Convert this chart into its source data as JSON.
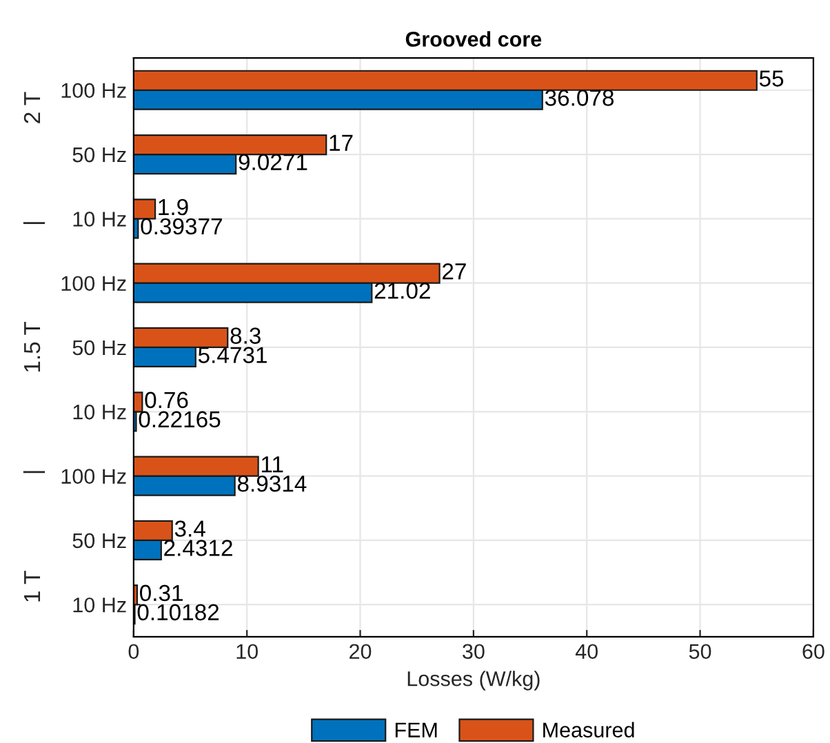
{
  "chart_data": {
    "type": "bar",
    "orientation": "horizontal",
    "title": "Grooved core",
    "xlabel": "Losses (W/kg)",
    "ylabel": "1 T               |               1.5 T               |               2 T",
    "categories": [
      "100 Hz",
      "50 Hz",
      "10 Hz",
      "100 Hz",
      "50 Hz",
      "10 Hz",
      "100 Hz",
      "50 Hz",
      "10 Hz"
    ],
    "series": [
      {
        "name": "FEM",
        "color": "#0072bd",
        "values": [
          36.078,
          9.0271,
          0.39377,
          21.02,
          5.4731,
          0.22165,
          8.9314,
          2.4312,
          0.10182
        ]
      },
      {
        "name": "Measured",
        "color": "#d95319",
        "values": [
          55,
          17,
          1.9,
          27,
          8.3,
          0.76,
          11,
          3.4,
          0.31
        ]
      }
    ],
    "xlim": [
      0,
      60
    ],
    "xticks": [
      0,
      10,
      20,
      30,
      40,
      50,
      60
    ],
    "grid": true,
    "legend": "bottom",
    "data_labels": true
  }
}
